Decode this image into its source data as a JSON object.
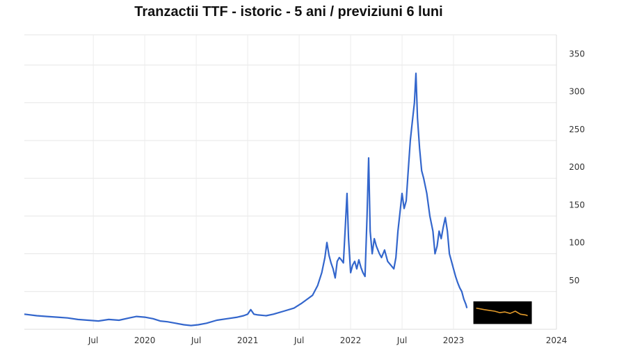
{
  "chart_data": {
    "type": "line",
    "title": "Tranzactii TTF - istoric - 5 ani / previziuni 6 luni",
    "xlabel": "",
    "ylabel": "",
    "x_range": [
      2018.83,
      2024.0
    ],
    "ylim": [
      0,
      390
    ],
    "grid": true,
    "y_ticks": [
      {
        "value": 50,
        "label": "50"
      },
      {
        "value": 100,
        "label": "100"
      },
      {
        "value": 150,
        "label": "150"
      },
      {
        "value": 200,
        "label": "200"
      },
      {
        "value": 250,
        "label": "250"
      },
      {
        "value": 300,
        "label": "300"
      },
      {
        "value": 350,
        "label": "350"
      }
    ],
    "x_ticks": [
      {
        "value": 2019.5,
        "label": "Jul"
      },
      {
        "value": 2020.0,
        "label": "2020"
      },
      {
        "value": 2020.5,
        "label": "Jul"
      },
      {
        "value": 2021.0,
        "label": "2021"
      },
      {
        "value": 2021.5,
        "label": "Jul"
      },
      {
        "value": 2022.0,
        "label": "2022"
      },
      {
        "value": 2022.5,
        "label": "Jul"
      },
      {
        "value": 2023.0,
        "label": "2023"
      },
      {
        "value": 2024.0,
        "label": "2024"
      }
    ],
    "series": [
      {
        "color": "#3366cc",
        "points": [
          [
            2018.83,
            20
          ],
          [
            2018.95,
            18
          ],
          [
            2019.05,
            17
          ],
          [
            2019.15,
            16
          ],
          [
            2019.25,
            15
          ],
          [
            2019.35,
            13
          ],
          [
            2019.45,
            12
          ],
          [
            2019.55,
            11
          ],
          [
            2019.65,
            13
          ],
          [
            2019.75,
            12
          ],
          [
            2019.85,
            15
          ],
          [
            2019.92,
            17
          ],
          [
            2020.0,
            16
          ],
          [
            2020.08,
            14
          ],
          [
            2020.15,
            11
          ],
          [
            2020.22,
            10
          ],
          [
            2020.3,
            8
          ],
          [
            2020.38,
            6
          ],
          [
            2020.45,
            5
          ],
          [
            2020.52,
            6
          ],
          [
            2020.6,
            8
          ],
          [
            2020.7,
            12
          ],
          [
            2020.8,
            14
          ],
          [
            2020.9,
            16
          ],
          [
            2020.96,
            18
          ],
          [
            2021.0,
            20
          ],
          [
            2021.03,
            26
          ],
          [
            2021.06,
            20
          ],
          [
            2021.1,
            19
          ],
          [
            2021.18,
            18
          ],
          [
            2021.25,
            20
          ],
          [
            2021.35,
            24
          ],
          [
            2021.45,
            28
          ],
          [
            2021.52,
            34
          ],
          [
            2021.58,
            40
          ],
          [
            2021.63,
            45
          ],
          [
            2021.68,
            58
          ],
          [
            2021.72,
            75
          ],
          [
            2021.75,
            95
          ],
          [
            2021.77,
            115
          ],
          [
            2021.79,
            98
          ],
          [
            2021.81,
            88
          ],
          [
            2021.83,
            80
          ],
          [
            2021.85,
            68
          ],
          [
            2021.87,
            90
          ],
          [
            2021.89,
            95
          ],
          [
            2021.91,
            92
          ],
          [
            2021.93,
            88
          ],
          [
            2021.95,
            140
          ],
          [
            2021.965,
            180
          ],
          [
            2021.98,
            120
          ],
          [
            2022.0,
            75
          ],
          [
            2022.02,
            85
          ],
          [
            2022.04,
            90
          ],
          [
            2022.06,
            80
          ],
          [
            2022.08,
            92
          ],
          [
            2022.1,
            82
          ],
          [
            2022.12,
            75
          ],
          [
            2022.14,
            70
          ],
          [
            2022.16,
            150
          ],
          [
            2022.175,
            227
          ],
          [
            2022.19,
            130
          ],
          [
            2022.21,
            100
          ],
          [
            2022.23,
            120
          ],
          [
            2022.25,
            110
          ],
          [
            2022.28,
            100
          ],
          [
            2022.3,
            95
          ],
          [
            2022.33,
            105
          ],
          [
            2022.36,
            90
          ],
          [
            2022.39,
            85
          ],
          [
            2022.42,
            80
          ],
          [
            2022.44,
            95
          ],
          [
            2022.46,
            130
          ],
          [
            2022.48,
            155
          ],
          [
            2022.5,
            180
          ],
          [
            2022.52,
            160
          ],
          [
            2022.54,
            170
          ],
          [
            2022.56,
            210
          ],
          [
            2022.58,
            250
          ],
          [
            2022.6,
            275
          ],
          [
            2022.62,
            300
          ],
          [
            2022.635,
            339
          ],
          [
            2022.65,
            280
          ],
          [
            2022.67,
            240
          ],
          [
            2022.69,
            210
          ],
          [
            2022.71,
            200
          ],
          [
            2022.74,
            180
          ],
          [
            2022.77,
            150
          ],
          [
            2022.8,
            130
          ],
          [
            2022.82,
            100
          ],
          [
            2022.84,
            110
          ],
          [
            2022.86,
            130
          ],
          [
            2022.88,
            120
          ],
          [
            2022.9,
            135
          ],
          [
            2022.92,
            148
          ],
          [
            2022.94,
            130
          ],
          [
            2022.96,
            100
          ],
          [
            2022.98,
            90
          ],
          [
            2023.0,
            80
          ],
          [
            2023.02,
            70
          ],
          [
            2023.04,
            62
          ],
          [
            2023.06,
            55
          ],
          [
            2023.08,
            50
          ],
          [
            2023.1,
            40
          ],
          [
            2023.12,
            33
          ],
          [
            2023.13,
            28
          ]
        ]
      },
      {
        "color": "#e39a2a",
        "points": [
          [
            2023.22,
            28
          ],
          [
            2023.26,
            27
          ],
          [
            2023.3,
            26
          ],
          [
            2023.35,
            25
          ],
          [
            2023.4,
            24
          ],
          [
            2023.45,
            22
          ],
          [
            2023.5,
            23
          ],
          [
            2023.55,
            21
          ],
          [
            2023.6,
            24
          ],
          [
            2023.65,
            20
          ],
          [
            2023.7,
            19
          ],
          [
            2023.72,
            18
          ]
        ]
      }
    ]
  }
}
